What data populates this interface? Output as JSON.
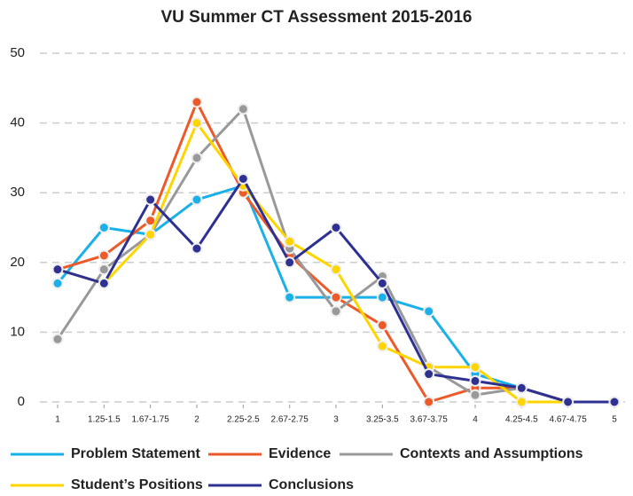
{
  "chart_data": {
    "type": "line",
    "title": "VU Summer CT Assessment 2015-2016",
    "categories": [
      "1",
      "1.25-1.5",
      "1.67-1.75",
      "2",
      "2.25-2.5",
      "2.67-2.75",
      "3",
      "3.25-3.5",
      "3.67-3.75",
      "4",
      "4.25-4.5",
      "4.67-4.75",
      "5"
    ],
    "series": [
      {
        "name": "Problem Statement",
        "color": "#1ab0e8",
        "values": [
          17,
          25,
          24,
          29,
          31,
          15,
          15,
          15,
          13,
          4,
          2,
          0,
          0
        ]
      },
      {
        "name": "Evidence",
        "color": "#ec5a2a",
        "values": [
          19,
          21,
          26,
          43,
          30,
          21,
          15,
          11,
          0,
          2,
          2,
          0,
          0
        ]
      },
      {
        "name": "Contexts and Assumptions",
        "color": "#999999",
        "values": [
          9,
          19,
          24,
          35,
          42,
          22,
          13,
          18,
          5,
          1,
          2,
          0,
          0
        ]
      },
      {
        "name": "Student’s Positions",
        "color": "#ffd500",
        "values": [
          19,
          17,
          24,
          40,
          31,
          23,
          19,
          8,
          5,
          5,
          0,
          0,
          0
        ]
      },
      {
        "name": "Conclusions",
        "color": "#2e3192",
        "values": [
          19,
          17,
          29,
          22,
          32,
          20,
          25,
          17,
          4,
          3,
          2,
          0,
          0
        ]
      }
    ],
    "ylim": [
      0,
      50
    ],
    "yticks": [
      0,
      10,
      20,
      30,
      40,
      50
    ],
    "grid": true
  }
}
